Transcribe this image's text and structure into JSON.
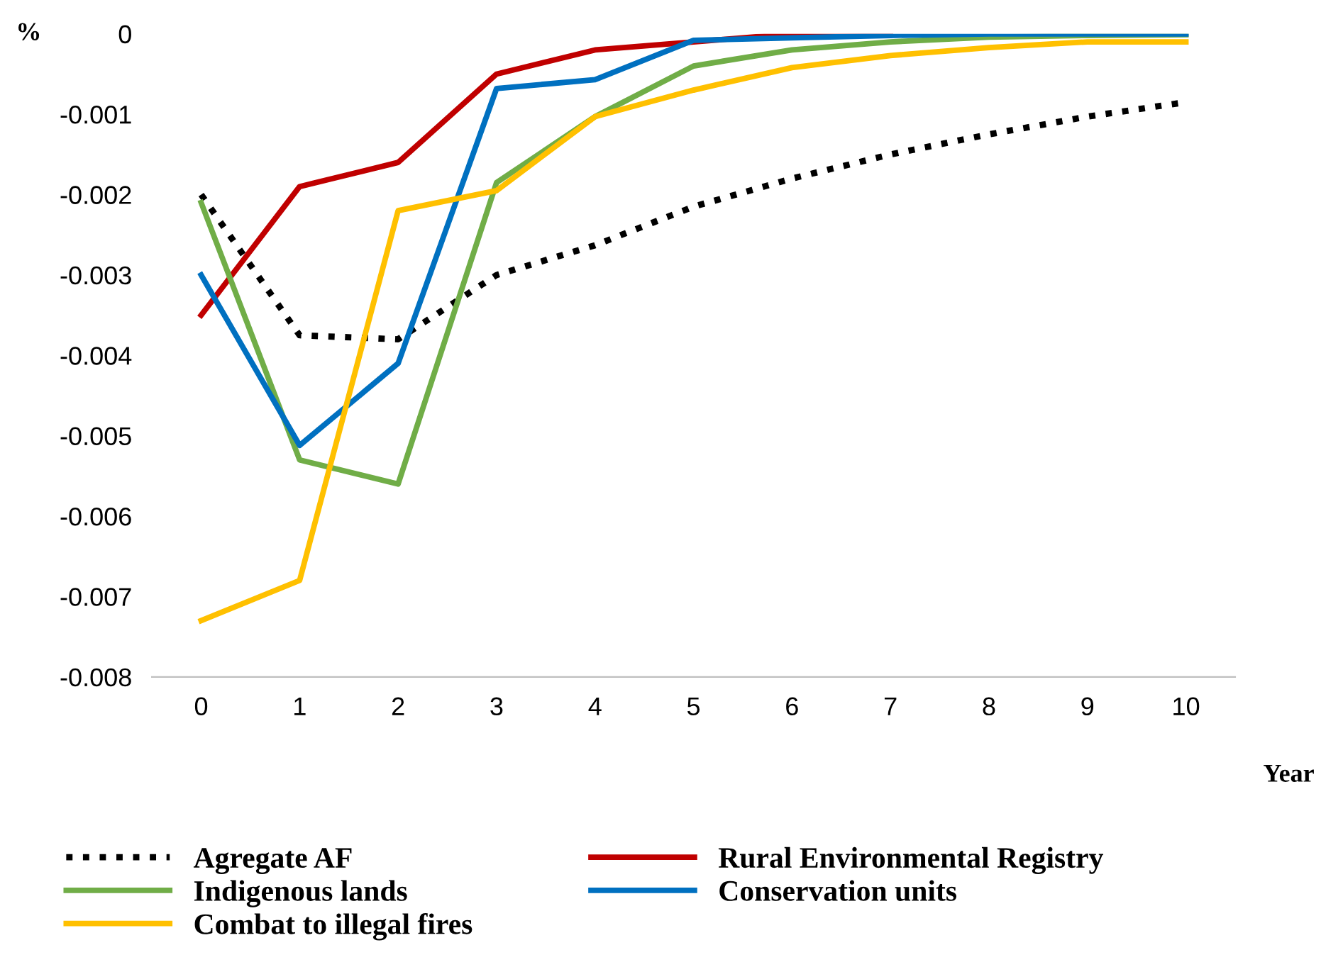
{
  "chart_data": {
    "type": "line",
    "ylabel": "%",
    "xlabel": "Year",
    "x": [
      0,
      1,
      2,
      3,
      4,
      5,
      6,
      7,
      8,
      9,
      10
    ],
    "xlim": [
      -0.5,
      10.5
    ],
    "xticks": [
      0,
      1,
      2,
      3,
      4,
      5,
      6,
      7,
      8,
      9,
      10
    ],
    "ylim": [
      -0.008,
      0
    ],
    "yticks": [
      -0.008,
      -0.007,
      -0.006,
      -0.005,
      -0.004,
      -0.003,
      -0.002,
      -0.001,
      0
    ],
    "grid": false,
    "legend": "bottom",
    "marker": "none",
    "series": [
      {
        "name": "Agregate AF",
        "color": "#000000",
        "line_style": "dotted",
        "values": [
          -0.002,
          -0.00375,
          -0.0038,
          -0.003,
          -0.00263,
          -0.00215,
          -0.0018,
          -0.0015,
          -0.00125,
          -0.00103,
          -0.00085
        ]
      },
      {
        "name": "Rural Environmental Registry",
        "color": "#c00000",
        "line_style": "solid",
        "values": [
          -0.0035,
          -0.0019,
          -0.0016,
          -0.0005,
          -0.0002,
          -0.0001,
          0,
          0,
          null,
          null,
          null
        ]
      },
      {
        "name": "Indigenous lands",
        "color": "#70ad47",
        "line_style": "solid",
        "values": [
          -0.0021,
          -0.0053,
          -0.0056,
          -0.00185,
          -0.00103,
          -0.0004,
          -0.0002,
          -0.0001,
          -4e-05,
          -2e-05,
          -1e-05
        ]
      },
      {
        "name": "Conservation units",
        "color": "#0070c0",
        "line_style": "solid",
        "values": [
          -0.003,
          -0.00512,
          -0.0041,
          -0.00068,
          -0.00057,
          -8e-05,
          -5e-05,
          -2e-05,
          0,
          0,
          0
        ]
      },
      {
        "name": "Combat to illegal fires",
        "color": "#ffc000",
        "line_style": "solid",
        "values": [
          -0.0073,
          -0.0068,
          -0.0022,
          -0.00195,
          -0.00103,
          -0.0007,
          -0.00042,
          -0.00027,
          -0.00017,
          -0.0001,
          -0.0001
        ]
      }
    ]
  }
}
